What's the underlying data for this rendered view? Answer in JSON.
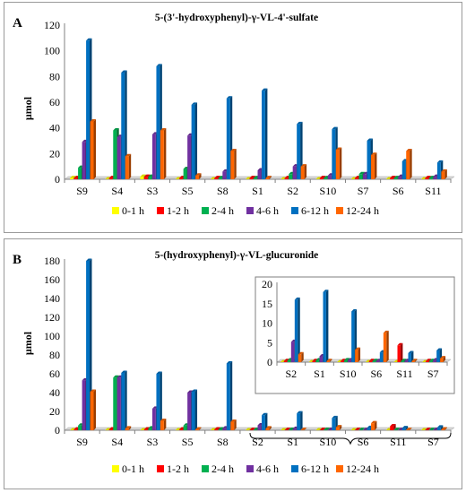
{
  "colors": {
    "0-1 h": "#ffff00",
    "1-2 h": "#ff0000",
    "2-4 h": "#00b050",
    "4-6 h": "#7030a0",
    "6-12 h": "#0070c0",
    "12-24 h": "#ff6600"
  },
  "chart_data": [
    {
      "type": "bar",
      "panel_label": "A",
      "title": "5-(3'-hydroxyphenyl)-γ-VL-4'-sulfate",
      "ylabel": "µmol",
      "xlabel": "",
      "ylim": [
        0,
        120
      ],
      "yticks": [
        0,
        20,
        40,
        60,
        80,
        100,
        120
      ],
      "categories": [
        "S9",
        "S4",
        "S3",
        "S5",
        "S8",
        "S1",
        "S2",
        "S10",
        "S7",
        "S6",
        "S11"
      ],
      "series": [
        {
          "name": "0-1 h",
          "values": [
            1,
            0,
            2,
            0,
            0,
            0,
            0,
            0,
            0,
            0,
            0
          ]
        },
        {
          "name": "1-2 h",
          "values": [
            1,
            1,
            2,
            1,
            1,
            1,
            1,
            1,
            1,
            1,
            1
          ]
        },
        {
          "name": "2-4 h",
          "values": [
            9,
            38,
            2,
            8,
            1,
            1,
            4,
            1,
            4,
            1,
            1
          ]
        },
        {
          "name": "4-6 h",
          "values": [
            29,
            33,
            35,
            34,
            6,
            7,
            10,
            3,
            4,
            2,
            2
          ]
        },
        {
          "name": "6-12 h",
          "values": [
            108,
            83,
            88,
            58,
            63,
            69,
            43,
            39,
            30,
            14,
            13
          ]
        },
        {
          "name": "12-24 h",
          "values": [
            45,
            18,
            38,
            3,
            22,
            1,
            10,
            23,
            19,
            22,
            6
          ]
        }
      ],
      "legend": [
        "0-1 h",
        "1-2 h",
        "2-4 h",
        "4-6 h",
        "6-12 h",
        "12-24 h"
      ],
      "legend_position": "bottom"
    },
    {
      "type": "bar",
      "panel_label": "B",
      "title": "5-(hydroxyphenyl)-γ-VL-glucuronide",
      "ylabel": "µmol",
      "xlabel": "",
      "ylim": [
        0,
        180
      ],
      "yticks": [
        0,
        20,
        40,
        60,
        80,
        100,
        120,
        140,
        160,
        180
      ],
      "categories": [
        "S9",
        "S4",
        "S3",
        "S5",
        "S8",
        "S2",
        "S1",
        "S10",
        "S6",
        "S11",
        "S7"
      ],
      "series": [
        {
          "name": "0-1 h",
          "values": [
            0,
            0,
            0,
            0,
            0,
            0,
            0,
            0,
            0,
            0,
            0
          ]
        },
        {
          "name": "1-2 h",
          "values": [
            1,
            1,
            1,
            1,
            1,
            0.3,
            0.3,
            0.3,
            0.3,
            4.3,
            0.3
          ]
        },
        {
          "name": "2-4 h",
          "values": [
            5,
            56,
            2,
            5,
            1,
            0.5,
            0.5,
            0.5,
            0.3,
            0.3,
            0.3
          ]
        },
        {
          "name": "4-6 h",
          "values": [
            53,
            56,
            23,
            40,
            2,
            5.2,
            1.5,
            0.5,
            0.3,
            0.3,
            0.5
          ]
        },
        {
          "name": "6-12 h",
          "values": [
            180,
            61,
            60,
            41,
            71,
            16,
            18,
            13,
            2.5,
            2.3,
            3
          ]
        },
        {
          "name": "12-24 h",
          "values": [
            41,
            2,
            10,
            1,
            9,
            2,
            0.3,
            3.2,
            7.5,
            0.3,
            1
          ]
        }
      ],
      "legend": [
        "0-1 h",
        "1-2 h",
        "2-4 h",
        "4-6 h",
        "6-12 h",
        "12-24 h"
      ],
      "legend_position": "bottom",
      "inset": {
        "type": "bar",
        "ylim": [
          0,
          20
        ],
        "yticks": [
          0,
          5,
          10,
          15,
          20
        ],
        "categories": [
          "S2",
          "S1",
          "S10",
          "S6",
          "S11",
          "S7"
        ],
        "series": [
          {
            "name": "0-1 h",
            "values": [
              0,
              0,
              0,
              0,
              0,
              0
            ]
          },
          {
            "name": "1-2 h",
            "values": [
              0.3,
              0.3,
              0.3,
              0.3,
              4.3,
              0.3
            ]
          },
          {
            "name": "2-4 h",
            "values": [
              0.5,
              0.5,
              0.5,
              0.3,
              0.3,
              0.3
            ]
          },
          {
            "name": "4-6 h",
            "values": [
              5.2,
              1.5,
              0.5,
              0.3,
              0.3,
              0.5
            ]
          },
          {
            "name": "6-12 h",
            "values": [
              16,
              18,
              13,
              2.5,
              2.3,
              3
            ]
          },
          {
            "name": "12-24 h",
            "values": [
              2,
              0.3,
              3.2,
              7.5,
              0.3,
              1
            ]
          }
        ]
      }
    }
  ]
}
